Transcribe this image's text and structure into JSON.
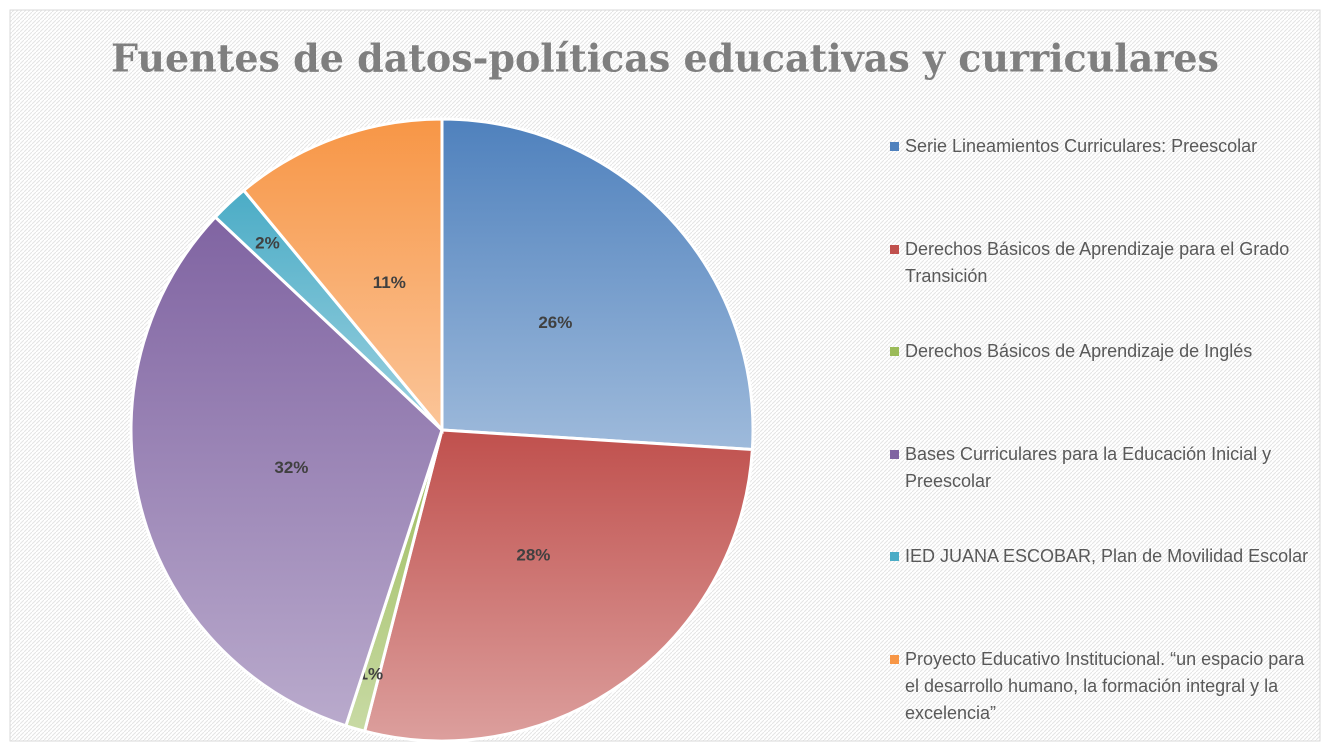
{
  "chart_data": {
    "type": "pie",
    "title": "Fuentes de datos-políticas educativas y curriculares",
    "categories": [
      "Serie Lineamientos Curriculares: Preescolar",
      "Derechos Básicos de Aprendizaje para el Grado Transición",
      "Derechos Básicos de Aprendizaje de Inglés",
      "Bases Curriculares para la Educación Inicial y Preescolar",
      "IED JUANA ESCOBAR, Plan de Movilidad Escolar",
      "Proyecto Educativo Institucional. “un espacio para el desarrollo humano, la formación integral y la excelencia”"
    ],
    "values": [
      26,
      28,
      1,
      32,
      2,
      11
    ],
    "value_labels": [
      "26%",
      "28%",
      "1%",
      "32%",
      "2%",
      "11%"
    ],
    "colors": [
      "#4f81bd",
      "#c0504d",
      "#9bbb59",
      "#8064a2",
      "#4bacc6",
      "#f79646"
    ],
    "legend": "right"
  }
}
